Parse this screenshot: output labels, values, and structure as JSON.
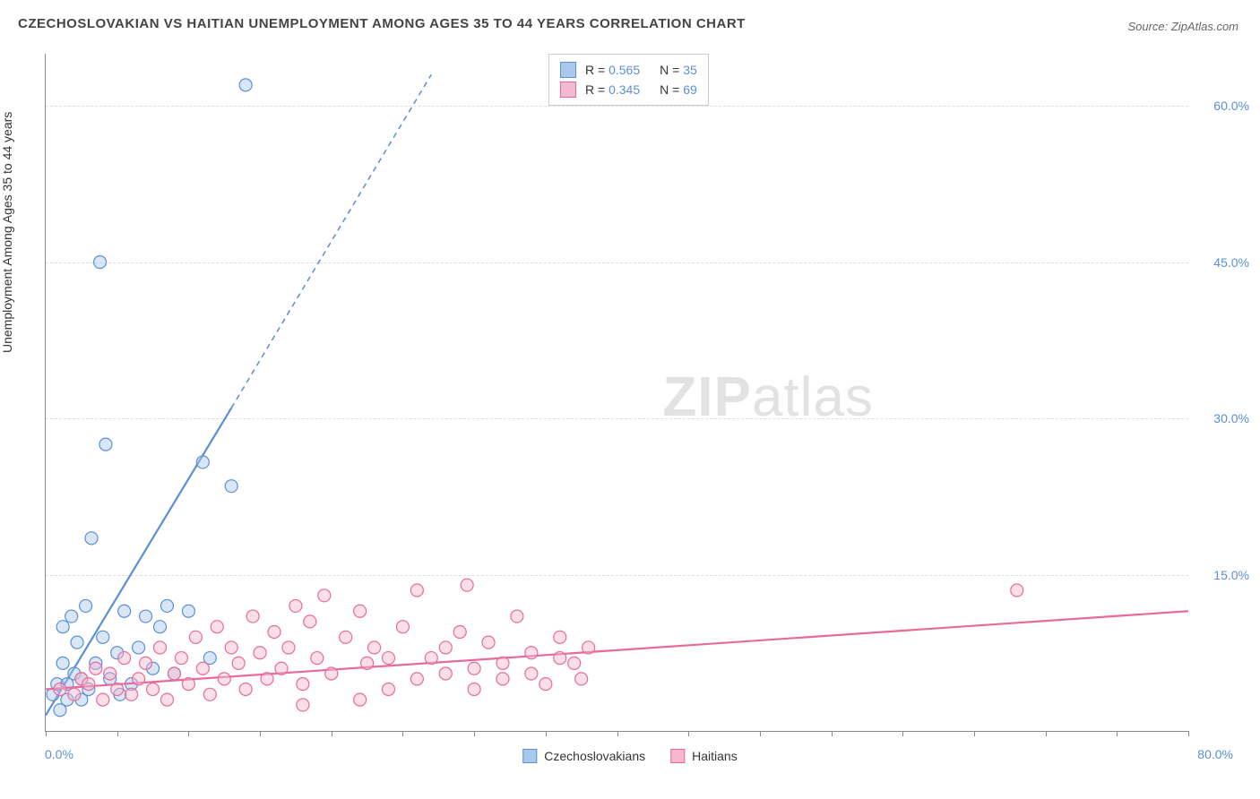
{
  "chart": {
    "type": "scatter",
    "title": "CZECHOSLOVAKIAN VS HAITIAN UNEMPLOYMENT AMONG AGES 35 TO 44 YEARS CORRELATION CHART",
    "source_label": "Source: ZipAtlas.com",
    "y_axis_label": "Unemployment Among Ages 35 to 44 years",
    "watermark_bold": "ZIP",
    "watermark_light": "atlas",
    "background_color": "#ffffff",
    "grid_color": "#dddddd",
    "axis_color": "#888888",
    "tick_label_color": "#5b8fd6",
    "title_fontsize": 15,
    "label_fontsize": 14,
    "xlim": [
      0,
      80
    ],
    "ylim": [
      0,
      65
    ],
    "x_tick_step": 5,
    "x_min_label": "0.0%",
    "x_max_label": "80.0%",
    "y_ticks": [
      {
        "value": 15,
        "label": "15.0%"
      },
      {
        "value": 30,
        "label": "30.0%"
      },
      {
        "value": 45,
        "label": "45.0%"
      },
      {
        "value": 60,
        "label": "60.0%"
      }
    ],
    "marker_radius": 7,
    "marker_opacity": 0.45,
    "marker_stroke_width": 1.2,
    "trend_line_width": 2.2,
    "trend_dash": "6,5",
    "series": [
      {
        "name": "Czechoslovakians",
        "color_fill": "#a8c8ec",
        "color_stroke": "#5b8fd6",
        "r_label": "R = ",
        "r_value": "0.565",
        "n_label": "N = ",
        "n_value": "35",
        "trend": {
          "x1": 0,
          "y1": 1.5,
          "x2": 13,
          "y2": 31,
          "x2_ext": 27,
          "y2_ext": 63
        },
        "points": [
          [
            0.5,
            3.5
          ],
          [
            0.8,
            4.5
          ],
          [
            1,
            2
          ],
          [
            1.2,
            6.5
          ],
          [
            1.2,
            10
          ],
          [
            1.5,
            4.5
          ],
          [
            1.8,
            11
          ],
          [
            2,
            5.5
          ],
          [
            2.2,
            8.5
          ],
          [
            2.5,
            3
          ],
          [
            2.8,
            12
          ],
          [
            3,
            4
          ],
          [
            3.2,
            18.5
          ],
          [
            3.5,
            6.5
          ],
          [
            3.8,
            45
          ],
          [
            4,
            9
          ],
          [
            4.2,
            27.5
          ],
          [
            4.5,
            5
          ],
          [
            5,
            7.5
          ],
          [
            5.2,
            3.5
          ],
          [
            5.5,
            11.5
          ],
          [
            6,
            4.5
          ],
          [
            6.5,
            8
          ],
          [
            7,
            11
          ],
          [
            7.5,
            6
          ],
          [
            8,
            10
          ],
          [
            8.5,
            12
          ],
          [
            9,
            5.5
          ],
          [
            10,
            11.5
          ],
          [
            11,
            25.8
          ],
          [
            11.5,
            7
          ],
          [
            13,
            23.5
          ],
          [
            14,
            62
          ],
          [
            2.5,
            5
          ],
          [
            1.5,
            3
          ]
        ]
      },
      {
        "name": "Haitians",
        "color_fill": "#f4b8cf",
        "color_stroke": "#e86a9a",
        "r_label": "R = ",
        "r_value": "0.345",
        "n_label": "N = ",
        "n_value": "69",
        "trend": {
          "x1": 0,
          "y1": 4,
          "x2": 80,
          "y2": 11.5,
          "x2_ext": 80,
          "y2_ext": 11.5
        },
        "points": [
          [
            1,
            4
          ],
          [
            2,
            3.5
          ],
          [
            2.5,
            5
          ],
          [
            3,
            4.5
          ],
          [
            3.5,
            6
          ],
          [
            4,
            3
          ],
          [
            4.5,
            5.5
          ],
          [
            5,
            4
          ],
          [
            5.5,
            7
          ],
          [
            6,
            3.5
          ],
          [
            6.5,
            5
          ],
          [
            7,
            6.5
          ],
          [
            7.5,
            4
          ],
          [
            8,
            8
          ],
          [
            8.5,
            3
          ],
          [
            9,
            5.5
          ],
          [
            9.5,
            7
          ],
          [
            10,
            4.5
          ],
          [
            10.5,
            9
          ],
          [
            11,
            6
          ],
          [
            11.5,
            3.5
          ],
          [
            12,
            10
          ],
          [
            12.5,
            5
          ],
          [
            13,
            8
          ],
          [
            13.5,
            6.5
          ],
          [
            14,
            4
          ],
          [
            14.5,
            11
          ],
          [
            15,
            7.5
          ],
          [
            15.5,
            5
          ],
          [
            16,
            9.5
          ],
          [
            16.5,
            6
          ],
          [
            17,
            8
          ],
          [
            17.5,
            12
          ],
          [
            18,
            4.5
          ],
          [
            18.5,
            10.5
          ],
          [
            19,
            7
          ],
          [
            19.5,
            13
          ],
          [
            20,
            5.5
          ],
          [
            21,
            9
          ],
          [
            22,
            11.5
          ],
          [
            22.5,
            6.5
          ],
          [
            23,
            8
          ],
          [
            24,
            4
          ],
          [
            25,
            10
          ],
          [
            26,
            13.5
          ],
          [
            27,
            7
          ],
          [
            28,
            5.5
          ],
          [
            29,
            9.5
          ],
          [
            29.5,
            14
          ],
          [
            30,
            6
          ],
          [
            31,
            8.5
          ],
          [
            32,
            5
          ],
          [
            33,
            11
          ],
          [
            34,
            7.5
          ],
          [
            35,
            4.5
          ],
          [
            36,
            9
          ],
          [
            37,
            6.5
          ],
          [
            38,
            8
          ],
          [
            37.5,
            5
          ],
          [
            18,
            2.5
          ],
          [
            22,
            3
          ],
          [
            24,
            7
          ],
          [
            26,
            5
          ],
          [
            28,
            8
          ],
          [
            30,
            4
          ],
          [
            32,
            6.5
          ],
          [
            34,
            5.5
          ],
          [
            36,
            7
          ],
          [
            68,
            13.5
          ]
        ]
      }
    ]
  }
}
